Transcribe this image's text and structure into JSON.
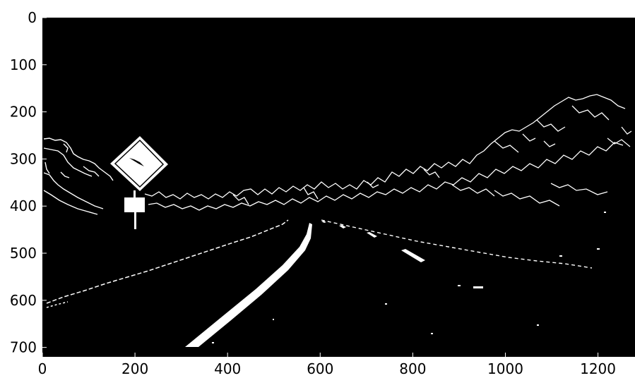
{
  "image": {
    "description_kind": "binary edge-threshold image of a road with lane lines and a diamond road sign",
    "foreground_color": "#ffffff",
    "background_color": "#000000",
    "x_range": [
      0,
      1280
    ],
    "y_range": [
      720,
      0
    ]
  },
  "axes": {
    "x_ticks": [
      {
        "value": 0,
        "label": "0"
      },
      {
        "value": 200,
        "label": "200"
      },
      {
        "value": 400,
        "label": "400"
      },
      {
        "value": 600,
        "label": "600"
      },
      {
        "value": 800,
        "label": "800"
      },
      {
        "value": 1000,
        "label": "1000"
      },
      {
        "value": 1200,
        "label": "1200"
      }
    ],
    "y_ticks": [
      {
        "value": 0,
        "label": "0"
      },
      {
        "value": 100,
        "label": "100"
      },
      {
        "value": 200,
        "label": "200"
      },
      {
        "value": 300,
        "label": "300"
      },
      {
        "value": 400,
        "label": "400"
      },
      {
        "value": 500,
        "label": "500"
      },
      {
        "value": 600,
        "label": "600"
      },
      {
        "value": 700,
        "label": "700"
      }
    ]
  }
}
